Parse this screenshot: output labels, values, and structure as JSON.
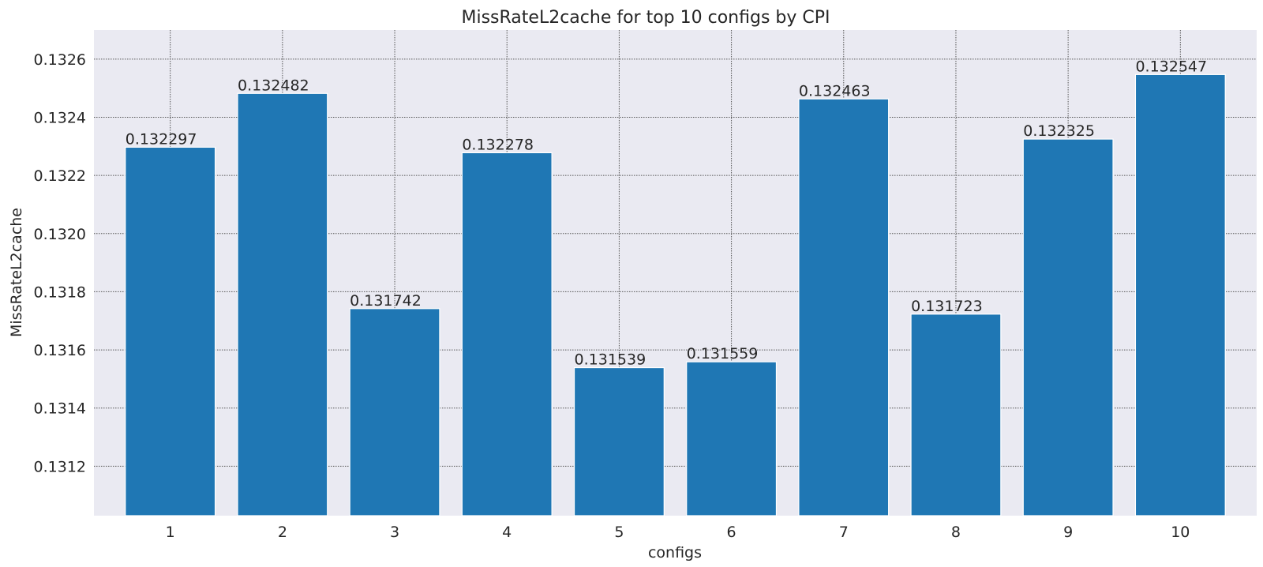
{
  "chart_data": {
    "type": "bar",
    "title": "MissRateL2cache for top 10 configs by CPI",
    "xlabel": "configs",
    "ylabel": "MissRateL2cache",
    "categories": [
      "1",
      "2",
      "3",
      "4",
      "5",
      "6",
      "7",
      "8",
      "9",
      "10"
    ],
    "values": [
      0.132297,
      0.132482,
      0.131742,
      0.132278,
      0.131539,
      0.131559,
      0.132463,
      0.131723,
      0.132325,
      0.132547
    ],
    "labels": [
      "0.132297",
      "0.132482",
      "0.131742",
      "0.132278",
      "0.131539",
      "0.131559",
      "0.132463",
      "0.131723",
      "0.132325",
      "0.132547"
    ],
    "ylim": [
      0.13103,
      0.1327
    ],
    "yticks": [
      0.1312,
      0.1314,
      0.1316,
      0.1318,
      0.132,
      0.1322,
      0.1324,
      0.1326
    ],
    "ytick_labels": [
      "0.1312",
      "0.1314",
      "0.1316",
      "0.1318",
      "0.1320",
      "0.1322",
      "0.1324",
      "0.1326"
    ],
    "grid": true,
    "colors": {
      "bar": "#1f77b4",
      "background": "#eaeaf2"
    }
  }
}
